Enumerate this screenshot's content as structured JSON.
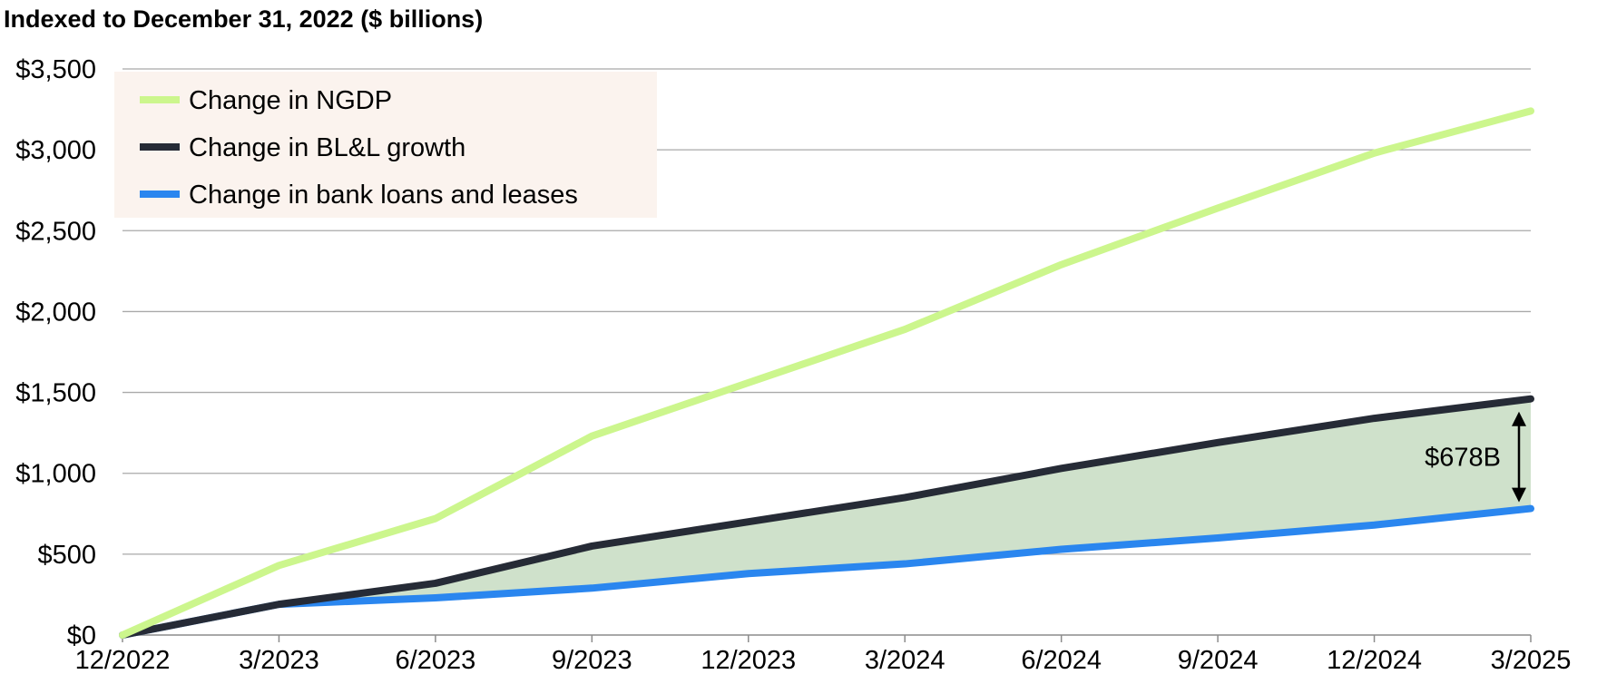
{
  "chart_data": {
    "type": "line",
    "title": "Indexed to December 31, 2022 ($ billions)",
    "categories": [
      "12/2022",
      "3/2023",
      "6/2023",
      "9/2023",
      "12/2023",
      "3/2024",
      "6/2024",
      "9/2024",
      "12/2024",
      "3/2025"
    ],
    "y_tick_labels": [
      "$0",
      "$500",
      "$1,000",
      "$1,500",
      "$2,000",
      "$2,500",
      "$3,000",
      "$3,500"
    ],
    "y_ticks": [
      0,
      500,
      1000,
      1500,
      2000,
      2500,
      3000,
      3500
    ],
    "ylim": [
      0,
      3500
    ],
    "grid": "horizontal",
    "legend_placement": "top-left",
    "series": [
      {
        "name": "Change in NGDP",
        "color": "#ccf68d",
        "values": [
          0,
          430,
          720,
          1230,
          1560,
          1890,
          2290,
          2640,
          2980,
          3240
        ]
      },
      {
        "name": "Change in BL&L growth",
        "color": "#262b36",
        "values": [
          0,
          190,
          320,
          550,
          700,
          850,
          1030,
          1190,
          1340,
          1460
        ]
      },
      {
        "name": "Change in bank loans and leases",
        "color": "#2a86ef",
        "values": [
          0,
          190,
          230,
          290,
          380,
          440,
          530,
          600,
          680,
          782
        ]
      }
    ],
    "shaded_region": {
      "between": [
        "Change in BL&L growth",
        "Change in bank loans and leases"
      ],
      "color": "#cfe1cb"
    },
    "annotation": {
      "text": "$678B",
      "at_category": "3/2025"
    }
  }
}
